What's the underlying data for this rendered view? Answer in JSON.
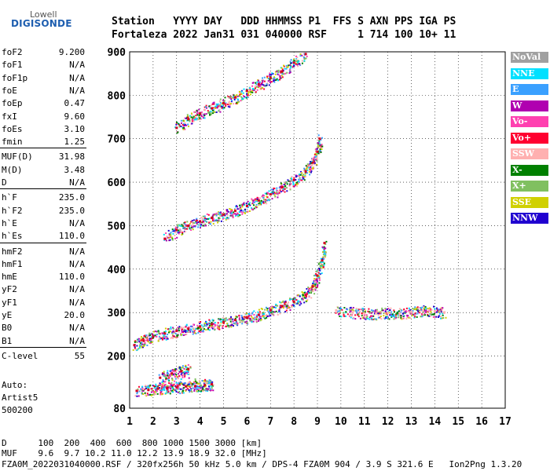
{
  "logo": {
    "line1": "Lowell",
    "line2": "DIGISONDE"
  },
  "header": {
    "row1": "Station   YYYY DAY   DDD HHMMSS P1  FFS S AXN PPS IGA PS",
    "row2": "Fortaleza 2022 Jan31 031 040000 RSF     1 714 100 10+ 11"
  },
  "params": {
    "group1": [
      {
        "label": "foF2",
        "value": "9.200"
      },
      {
        "label": "foF1",
        "value": "N/A"
      },
      {
        "label": "foF1p",
        "value": "N/A"
      },
      {
        "label": "foE",
        "value": "N/A"
      },
      {
        "label": "foEp",
        "value": "0.47"
      },
      {
        "label": "fxI",
        "value": "9.60"
      },
      {
        "label": "foEs",
        "value": "3.10"
      },
      {
        "label": "fmin",
        "value": "1.25"
      }
    ],
    "group2": [
      {
        "label": "MUF(D)",
        "value": "31.98"
      },
      {
        "label": "M(D)",
        "value": "3.48"
      },
      {
        "label": "D",
        "value": "N/A"
      }
    ],
    "group3": [
      {
        "label": "h`F",
        "value": "235.0"
      },
      {
        "label": "h`F2",
        "value": "235.0"
      },
      {
        "label": "h`E",
        "value": "N/A"
      },
      {
        "label": "h`Es",
        "value": "110.0"
      }
    ],
    "group4": [
      {
        "label": "hmF2",
        "value": "N/A"
      },
      {
        "label": "hmF1",
        "value": "N/A"
      },
      {
        "label": "hmE",
        "value": "110.0"
      },
      {
        "label": "yF2",
        "value": "N/A"
      },
      {
        "label": "yF1",
        "value": "N/A"
      },
      {
        "label": "yE",
        "value": "20.0"
      },
      {
        "label": "B0",
        "value": "N/A"
      },
      {
        "label": "B1",
        "value": "N/A"
      }
    ],
    "group5": [
      {
        "label": "C-level",
        "value": "55"
      }
    ]
  },
  "auto": {
    "line1": "Auto:",
    "line2": "Artist5",
    "line3": "500200"
  },
  "legend": [
    {
      "label": "NoVal",
      "color": "#a0a0a0"
    },
    {
      "label": "NNE",
      "color": "#00e0ff"
    },
    {
      "label": "E",
      "color": "#3aa0ff"
    },
    {
      "label": "W",
      "color": "#b000b0"
    },
    {
      "label": "Vo-",
      "color": "#ff40b0"
    },
    {
      "label": "Vo+",
      "color": "#ff0030"
    },
    {
      "label": "SSW",
      "color": "#ffb0b0"
    },
    {
      "label": "X-",
      "color": "#008000"
    },
    {
      "label": "X+",
      "color": "#80c060"
    },
    {
      "label": "SSE",
      "color": "#d0d000"
    },
    {
      "label": "NNW",
      "color": "#2000d0"
    }
  ],
  "footer": {
    "d_row": "D      100  200  400  600  800 1000 1500 3000 [km]",
    "muf_row": "MUF    9.6  9.7 10.2 11.0 12.2 13.9 18.9 32.0 [MHz]",
    "file_row": "FZA0M_2022031040000.RSF / 320fx256h 50 kHz 5.0 km / DPS-4 FZA0M 904 / 3.9 S 321.6 E   Ion2Png 1.3.20"
  },
  "chart_data": {
    "type": "scatter",
    "xlim": [
      1,
      17
    ],
    "ylim": [
      80,
      900
    ],
    "x_ticks": [
      1,
      2,
      3,
      4,
      5,
      6,
      7,
      8,
      9,
      10,
      11,
      12,
      13,
      14,
      15,
      16,
      17
    ],
    "y_ticks": [
      80,
      200,
      300,
      400,
      500,
      600,
      700,
      800,
      900
    ],
    "grid": true,
    "legend_position": "right",
    "series": [
      {
        "name": "Es",
        "points": [
          [
            1.3,
            120
          ],
          [
            1.8,
            122
          ],
          [
            2.2,
            125
          ],
          [
            2.6,
            127
          ],
          [
            3.0,
            128
          ],
          [
            3.4,
            130
          ],
          [
            3.8,
            131
          ],
          [
            4.2,
            133
          ],
          [
            4.5,
            135
          ],
          [
            2.3,
            150
          ],
          [
            2.8,
            160
          ],
          [
            3.2,
            165
          ],
          [
            3.5,
            170
          ]
        ]
      },
      {
        "name": "F2-1hop",
        "points": [
          [
            1.2,
            225
          ],
          [
            1.6,
            235
          ],
          [
            2.0,
            245
          ],
          [
            2.5,
            252
          ],
          [
            3.0,
            258
          ],
          [
            3.5,
            263
          ],
          [
            4.0,
            268
          ],
          [
            4.5,
            273
          ],
          [
            5.0,
            278
          ],
          [
            5.5,
            283
          ],
          [
            6.0,
            288
          ],
          [
            6.5,
            295
          ],
          [
            7.0,
            305
          ],
          [
            7.5,
            315
          ],
          [
            8.0,
            325
          ],
          [
            8.5,
            340
          ],
          [
            8.8,
            360
          ],
          [
            9.0,
            385
          ],
          [
            9.2,
            420
          ],
          [
            9.3,
            460
          ]
        ]
      },
      {
        "name": "F2-2hop",
        "points": [
          [
            2.5,
            470
          ],
          [
            3.0,
            490
          ],
          [
            3.5,
            500
          ],
          [
            4.0,
            510
          ],
          [
            4.5,
            518
          ],
          [
            5.0,
            526
          ],
          [
            5.5,
            534
          ],
          [
            6.0,
            545
          ],
          [
            6.5,
            558
          ],
          [
            7.0,
            572
          ],
          [
            7.5,
            588
          ],
          [
            8.0,
            605
          ],
          [
            8.5,
            625
          ],
          [
            8.8,
            645
          ],
          [
            9.0,
            670
          ],
          [
            9.1,
            700
          ]
        ]
      },
      {
        "name": "F2-3hop",
        "points": [
          [
            3.0,
            725
          ],
          [
            3.5,
            745
          ],
          [
            4.0,
            758
          ],
          [
            4.5,
            770
          ],
          [
            5.0,
            782
          ],
          [
            5.5,
            795
          ],
          [
            6.0,
            810
          ],
          [
            6.5,
            825
          ],
          [
            7.0,
            840
          ],
          [
            7.5,
            855
          ],
          [
            8.0,
            875
          ],
          [
            8.5,
            895
          ]
        ]
      },
      {
        "name": "F-spread",
        "points": [
          [
            9.8,
            305
          ],
          [
            10.5,
            300
          ],
          [
            11.0,
            298
          ],
          [
            11.5,
            298
          ],
          [
            12.0,
            300
          ],
          [
            12.5,
            298
          ],
          [
            13.0,
            302
          ],
          [
            13.5,
            305
          ],
          [
            14.0,
            303
          ],
          [
            14.4,
            300
          ]
        ]
      }
    ]
  }
}
